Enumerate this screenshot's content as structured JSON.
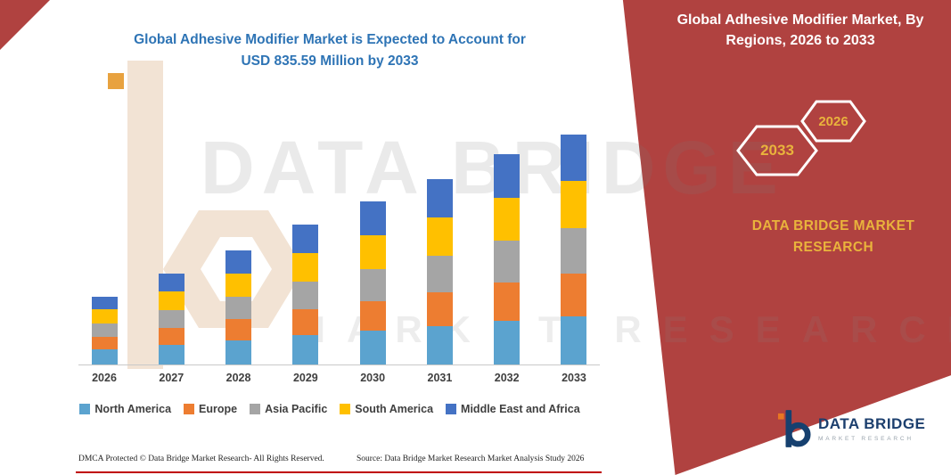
{
  "header": {
    "main_title_line1": "Global Adhesive Modifier Market is Expected to Account for",
    "main_title_line2": "USD 835.59 Million by 2033"
  },
  "side_panel": {
    "title_line1": "Global Adhesive Modifier Market, By",
    "title_line2": "Regions, 2026 to 2033",
    "hexagon_years": [
      "2033",
      "2026"
    ],
    "brand_line1": "DATA BRIDGE MARKET",
    "brand_line2": "RESEARCH",
    "panel_color": "#b04240",
    "accent_gold": "#e9b33c"
  },
  "watermark": {
    "line1": "DATA BRIDGE",
    "line2": "MARKET RESEARCH"
  },
  "chart_data": {
    "type": "bar",
    "stacked": true,
    "title": "Global Adhesive Modifier Market is Expected to Account for USD 835.59 Million by 2033",
    "unit": "USD Million",
    "categories": [
      "2026",
      "2027",
      "2028",
      "2029",
      "2030",
      "2031",
      "2032",
      "2033"
    ],
    "series": [
      {
        "name": "North America",
        "color": "#5ba3cf",
        "values": [
          55,
          70,
          88,
          105,
          122,
          140,
          158,
          175
        ]
      },
      {
        "name": "Europe",
        "color": "#ed7d31",
        "values": [
          45,
          60,
          76,
          92,
          108,
          124,
          140,
          155
        ]
      },
      {
        "name": "Asia Pacific",
        "color": "#a5a5a5",
        "values": [
          48,
          64,
          82,
          99,
          117,
          133,
          151,
          166
        ]
      },
      {
        "name": "South America",
        "color": "#ffc000",
        "values": [
          50,
          67,
          85,
          103,
          121,
          138,
          156,
          172
        ]
      },
      {
        "name": "Middle East and Africa",
        "color": "#4472c4",
        "values": [
          45,
          63,
          84,
          103,
          122,
          139,
          157,
          167.59
        ]
      }
    ],
    "totals_by_year": [
      243,
      324,
      415,
      502,
      590,
      674,
      762,
      835.59
    ],
    "ylim": [
      0,
      900
    ],
    "grid": false,
    "legend_position": "bottom",
    "y_axis_labels_visible": false
  },
  "footer": {
    "dmca": "DMCA Protected © Data Bridge Market Research-  All Rights Reserved.",
    "source": "Source: Data Bridge Market Research  Market Analysis Study 2026"
  },
  "logo": {
    "name": "DATA BRIDGE",
    "subtext": "MARKET RESEARCH"
  }
}
